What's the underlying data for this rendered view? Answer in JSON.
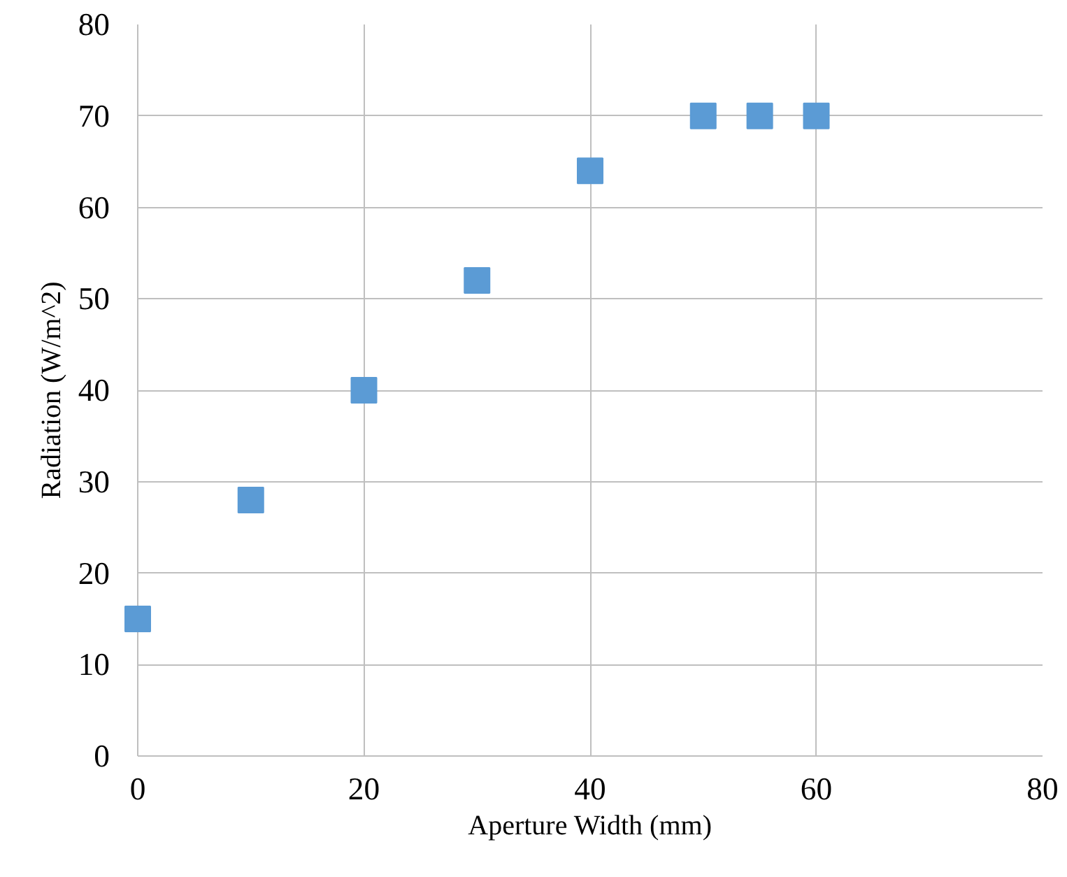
{
  "chart_data": {
    "type": "scatter",
    "xlabel": "Aperture Width (mm)",
    "ylabel": "Radiation (W/m^2)",
    "x": [
      0,
      10,
      20,
      30,
      40,
      50,
      55,
      60
    ],
    "series": [
      {
        "color": "#5b9bd5",
        "values": [
          15,
          28,
          40,
          52,
          64,
          70,
          70,
          70
        ]
      }
    ],
    "xlim": [
      0,
      80
    ],
    "ylim": [
      0,
      80
    ],
    "xticks": [
      0,
      20,
      40,
      60,
      80
    ],
    "yticks": [
      0,
      10,
      20,
      30,
      40,
      50,
      60,
      70,
      80
    ],
    "grid": true,
    "marker": "square"
  }
}
